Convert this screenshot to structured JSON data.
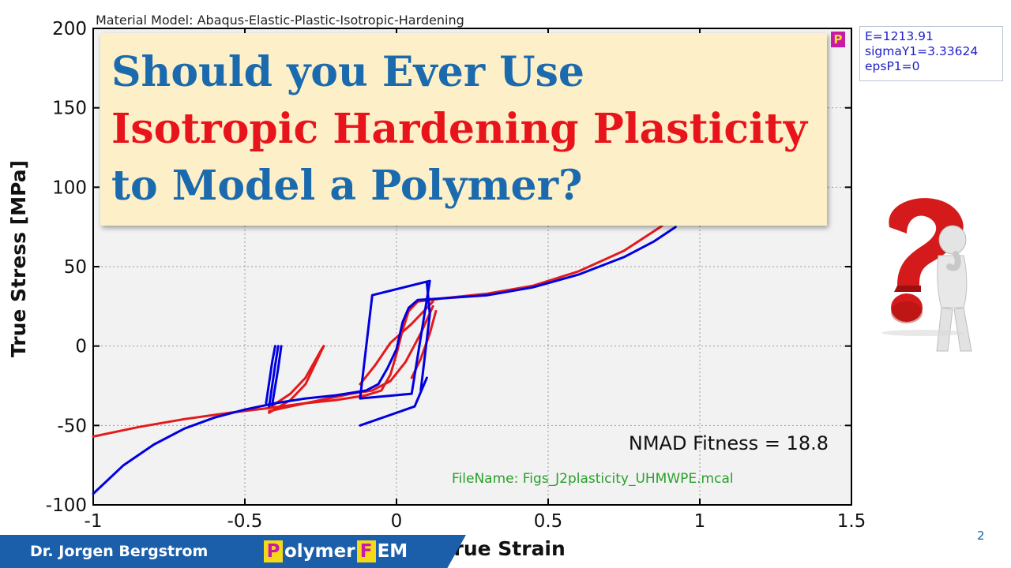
{
  "chart_data": {
    "type": "line",
    "title": "Material Model: Abaqus-Elastic-Plastic-Isotropic-Hardening",
    "xlabel": "True Strain",
    "ylabel": "True Stress [MPa]",
    "xlim": [
      -1,
      1.5
    ],
    "ylim": [
      -100,
      200
    ],
    "x_ticks": [
      -1,
      -0.5,
      0,
      0.5,
      1,
      1.5
    ],
    "x_tick_labels": [
      "-1",
      "-0.5",
      "0",
      "0.5",
      "1",
      "1.5"
    ],
    "y_ticks": [
      -100,
      -50,
      0,
      50,
      100,
      150,
      200
    ],
    "y_tick_labels": [
      "-100",
      "-50",
      "0",
      "50",
      "100",
      "150",
      "200"
    ],
    "grid": true,
    "annotations": {
      "fitness": "NMAD Fitness = 18.8",
      "filename": "FileName: Figs_J2plasticity_UHMWPE.mcal"
    },
    "series": [
      {
        "color": "#e31a1c",
        "segments": [
          [
            [
              -1,
              -57
            ],
            [
              -0.85,
              -51
            ],
            [
              -0.7,
              -46
            ],
            [
              -0.55,
              -42
            ],
            [
              -0.42,
              -39
            ],
            [
              -0.3,
              -36
            ],
            [
              -0.2,
              -34
            ],
            [
              -0.1,
              -31
            ],
            [
              -0.05,
              -28
            ],
            [
              -0.02,
              -18
            ],
            [
              0,
              -5
            ],
            [
              0.02,
              10
            ],
            [
              0.04,
              22
            ],
            [
              0.07,
              28
            ],
            [
              0.15,
              30
            ],
            [
              0.3,
              33
            ],
            [
              0.45,
              38
            ],
            [
              0.6,
              47
            ],
            [
              0.75,
              60
            ],
            [
              0.87,
              75
            ],
            [
              0.95,
              88
            ]
          ],
          [
            [
              0.12,
              25
            ],
            [
              0.08,
              8
            ],
            [
              0.03,
              -10
            ],
            [
              -0.02,
              -22
            ],
            [
              -0.08,
              -28
            ],
            [
              -0.15,
              -30
            ],
            [
              -0.25,
              -34
            ],
            [
              -0.35,
              -38
            ],
            [
              -0.42,
              -41
            ]
          ],
          [
            [
              -0.42,
              -39
            ],
            [
              -0.35,
              -30
            ],
            [
              -0.3,
              -20
            ],
            [
              -0.25,
              -3
            ],
            [
              -0.24,
              0
            ]
          ],
          [
            [
              -0.42,
              -42
            ],
            [
              -0.35,
              -34
            ],
            [
              -0.3,
              -24
            ],
            [
              -0.26,
              -8
            ],
            [
              -0.24,
              0
            ]
          ],
          [
            [
              -0.12,
              -24
            ],
            [
              -0.07,
              -12
            ],
            [
              -0.02,
              2
            ],
            [
              0.05,
              14
            ],
            [
              0.12,
              28
            ]
          ],
          [
            [
              0.05,
              -20
            ],
            [
              0.08,
              -8
            ],
            [
              0.11,
              8
            ],
            [
              0.13,
              22
            ]
          ]
        ]
      },
      {
        "color": "#0000e0",
        "segments": [
          [
            [
              -1,
              -93
            ],
            [
              -0.9,
              -75
            ],
            [
              -0.8,
              -62
            ],
            [
              -0.7,
              -52
            ],
            [
              -0.6,
              -45
            ],
            [
              -0.5,
              -40
            ],
            [
              -0.4,
              -36
            ],
            [
              -0.3,
              -33
            ],
            [
              -0.2,
              -31
            ],
            [
              -0.1,
              -28
            ],
            [
              -0.06,
              -24
            ],
            [
              -0.03,
              -14
            ],
            [
              0,
              -2
            ],
            [
              0.02,
              15
            ],
            [
              0.04,
              24
            ],
            [
              0.07,
              29
            ],
            [
              0.15,
              30
            ],
            [
              0.3,
              32
            ],
            [
              0.45,
              37
            ],
            [
              0.6,
              45
            ],
            [
              0.75,
              56
            ],
            [
              0.85,
              66
            ],
            [
              0.92,
              75
            ]
          ],
          [
            [
              -0.43,
              -36
            ],
            [
              -0.41,
              -10
            ],
            [
              -0.4,
              0
            ]
          ],
          [
            [
              -0.42,
              -38
            ],
            [
              -0.4,
              -12
            ],
            [
              -0.39,
              0
            ]
          ],
          [
            [
              -0.41,
              -37
            ],
            [
              -0.39,
              -14
            ],
            [
              -0.38,
              0
            ]
          ],
          [
            [
              -0.12,
              -33
            ],
            [
              -0.08,
              32
            ],
            [
              0.11,
              41
            ],
            [
              0.05,
              -30
            ],
            [
              -0.12,
              -33
            ]
          ],
          [
            [
              -0.12,
              -50
            ],
            [
              0.06,
              -38
            ],
            [
              0.1,
              -20
            ]
          ],
          [
            [
              0.1,
              40
            ],
            [
              0.11,
              20
            ],
            [
              0.08,
              -28
            ]
          ]
        ]
      }
    ]
  },
  "overlay": {
    "title_lines": [
      "Should you Ever Use",
      "Isotropic Hardening Plasticity",
      "to Model a Polymer?"
    ],
    "badge": "P"
  },
  "params": {
    "line1": "E=1213.91",
    "line2": "sigmaY1=3.33624",
    "line3": "epsP1=0"
  },
  "footer": {
    "author": "Dr. Jorgen Bergstrom",
    "brand_p": "P",
    "brand_mid": "olymer",
    "brand_f": "F",
    "brand_end": "EM",
    "page_number": "2"
  },
  "colors": {
    "title_blue": "#1c6aae",
    "title_red": "#e8141b",
    "footer_blue": "#1b5faa",
    "brand_magenta": "#c81aa8",
    "brand_yellow": "#f4d81a",
    "question_mark": "#d41a1a"
  },
  "icons": {
    "question_figure": "thinking-figure-with-question-mark-icon"
  }
}
